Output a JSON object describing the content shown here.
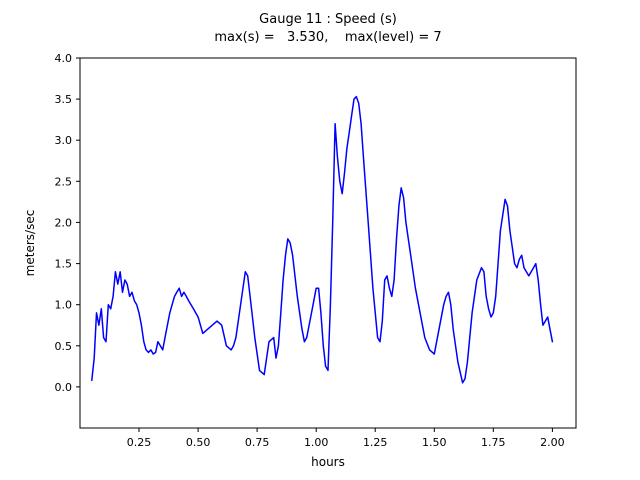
{
  "title": {
    "line1": "Gauge 11 : Speed (s)",
    "line2": "max(s) =   3.530,    max(level) = 7"
  },
  "chart_data": {
    "type": "line",
    "title": "Gauge 11 : Speed (s)",
    "subtitle": "max(s) =   3.530,    max(level) = 7",
    "max_s": 3.53,
    "max_level": 7,
    "xlabel": "hours",
    "ylabel": "meters/sec",
    "xlim": [
      0.0,
      2.1
    ],
    "ylim": [
      -0.5,
      4.0
    ],
    "xticks": [
      0.25,
      0.5,
      0.75,
      1.0,
      1.25,
      1.5,
      1.75,
      2.0
    ],
    "yticks": [
      0.0,
      0.5,
      1.0,
      1.5,
      2.0,
      2.5,
      3.0,
      3.5,
      4.0
    ],
    "grid": false,
    "legend": "none",
    "line_color": "#0000ff",
    "x": [
      0.05,
      0.06,
      0.07,
      0.08,
      0.09,
      0.1,
      0.11,
      0.12,
      0.13,
      0.14,
      0.15,
      0.16,
      0.17,
      0.18,
      0.19,
      0.2,
      0.21,
      0.22,
      0.23,
      0.24,
      0.25,
      0.26,
      0.27,
      0.28,
      0.29,
      0.3,
      0.31,
      0.32,
      0.33,
      0.34,
      0.35,
      0.36,
      0.37,
      0.38,
      0.39,
      0.4,
      0.41,
      0.42,
      0.43,
      0.44,
      0.45,
      0.46,
      0.47,
      0.48,
      0.49,
      0.5,
      0.52,
      0.54,
      0.56,
      0.58,
      0.6,
      0.62,
      0.64,
      0.65,
      0.66,
      0.68,
      0.7,
      0.71,
      0.72,
      0.74,
      0.76,
      0.78,
      0.8,
      0.82,
      0.83,
      0.84,
      0.85,
      0.86,
      0.87,
      0.88,
      0.89,
      0.9,
      0.92,
      0.94,
      0.95,
      0.96,
      0.98,
      1.0,
      1.01,
      1.02,
      1.03,
      1.04,
      1.05,
      1.06,
      1.07,
      1.08,
      1.09,
      1.1,
      1.11,
      1.12,
      1.13,
      1.14,
      1.15,
      1.16,
      1.17,
      1.18,
      1.19,
      1.2,
      1.22,
      1.24,
      1.26,
      1.27,
      1.28,
      1.29,
      1.3,
      1.31,
      1.32,
      1.33,
      1.34,
      1.35,
      1.36,
      1.37,
      1.38,
      1.4,
      1.42,
      1.44,
      1.46,
      1.48,
      1.5,
      1.52,
      1.54,
      1.55,
      1.56,
      1.57,
      1.58,
      1.6,
      1.62,
      1.63,
      1.64,
      1.66,
      1.68,
      1.7,
      1.71,
      1.72,
      1.73,
      1.74,
      1.75,
      1.76,
      1.78,
      1.8,
      1.81,
      1.82,
      1.84,
      1.85,
      1.86,
      1.87,
      1.88,
      1.9,
      1.92,
      1.93,
      1.94,
      1.95,
      1.96,
      1.97,
      1.98,
      1.99,
      2.0
    ],
    "y": [
      0.08,
      0.35,
      0.9,
      0.75,
      0.95,
      0.6,
      0.55,
      1.0,
      0.95,
      1.1,
      1.4,
      1.25,
      1.4,
      1.15,
      1.3,
      1.25,
      1.1,
      1.15,
      1.05,
      1.0,
      0.9,
      0.75,
      0.55,
      0.45,
      0.42,
      0.45,
      0.4,
      0.42,
      0.55,
      0.5,
      0.45,
      0.6,
      0.75,
      0.9,
      1.0,
      1.1,
      1.15,
      1.2,
      1.1,
      1.15,
      1.1,
      1.05,
      1.0,
      0.95,
      0.9,
      0.85,
      0.65,
      0.7,
      0.75,
      0.8,
      0.75,
      0.5,
      0.45,
      0.5,
      0.6,
      1.0,
      1.4,
      1.35,
      1.1,
      0.6,
      0.2,
      0.15,
      0.55,
      0.6,
      0.35,
      0.5,
      0.9,
      1.3,
      1.6,
      1.8,
      1.75,
      1.6,
      1.1,
      0.7,
      0.55,
      0.6,
      0.9,
      1.2,
      1.2,
      0.9,
      0.5,
      0.25,
      0.2,
      1.0,
      2.0,
      3.2,
      2.8,
      2.5,
      2.35,
      2.6,
      2.9,
      3.1,
      3.3,
      3.5,
      3.53,
      3.45,
      3.2,
      2.8,
      2.0,
      1.2,
      0.6,
      0.55,
      0.8,
      1.3,
      1.35,
      1.2,
      1.1,
      1.3,
      1.8,
      2.2,
      2.42,
      2.3,
      2.0,
      1.6,
      1.2,
      0.9,
      0.6,
      0.45,
      0.4,
      0.7,
      1.0,
      1.1,
      1.15,
      1.0,
      0.7,
      0.3,
      0.05,
      0.1,
      0.3,
      0.9,
      1.3,
      1.45,
      1.4,
      1.1,
      0.95,
      0.85,
      0.9,
      1.1,
      1.9,
      2.28,
      2.2,
      1.9,
      1.5,
      1.45,
      1.55,
      1.6,
      1.45,
      1.35,
      1.45,
      1.5,
      1.3,
      1.0,
      0.75,
      0.8,
      0.85,
      0.7,
      0.55
    ]
  }
}
